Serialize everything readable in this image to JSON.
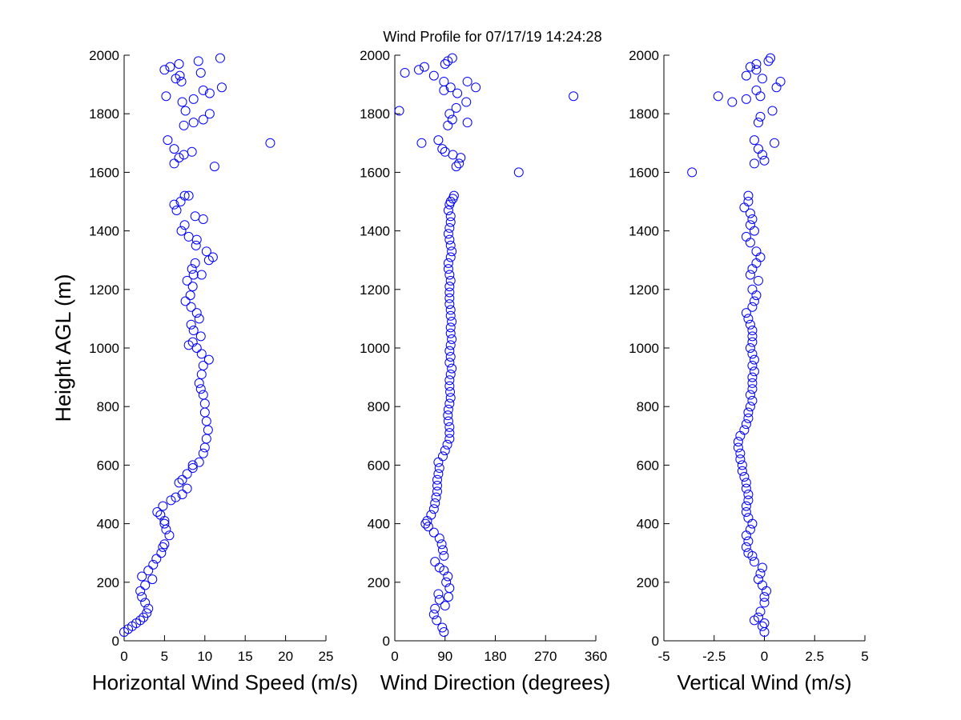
{
  "title": "Wind Profile for  07/17/19 14:24:28",
  "ylabel": "Height AGL (m)",
  "colors": {
    "marker": "#0000ff",
    "axis": "#000000",
    "background": "#ffffff"
  },
  "chart_data": [
    {
      "type": "scatter",
      "xlabel": "Horizontal Wind Speed (m/s)",
      "ylabel": "Height AGL (m)",
      "xlim": [
        0,
        25
      ],
      "ylim": [
        0,
        2000
      ],
      "xticks": [
        "0",
        "5",
        "10",
        "15",
        "20",
        "25"
      ],
      "yticks": [
        "0",
        "200",
        "400",
        "600",
        "800",
        "1000",
        "1200",
        "1400",
        "1600",
        "1800",
        "2000"
      ],
      "grid": false,
      "points": [
        [
          0.0,
          30
        ],
        [
          0.5,
          40
        ],
        [
          1.0,
          50
        ],
        [
          1.5,
          60
        ],
        [
          2.0,
          70
        ],
        [
          2.4,
          80
        ],
        [
          2.8,
          95
        ],
        [
          3.0,
          110
        ],
        [
          2.6,
          130
        ],
        [
          2.2,
          150
        ],
        [
          2.0,
          170
        ],
        [
          2.6,
          190
        ],
        [
          2.2,
          220
        ],
        [
          3.5,
          210
        ],
        [
          3.0,
          240
        ],
        [
          3.6,
          260
        ],
        [
          4.0,
          280
        ],
        [
          4.6,
          300
        ],
        [
          4.8,
          320
        ],
        [
          5.0,
          330
        ],
        [
          5.6,
          360
        ],
        [
          5.2,
          380
        ],
        [
          5.0,
          400
        ],
        [
          5.0,
          410
        ],
        [
          4.5,
          430
        ],
        [
          4.1,
          440
        ],
        [
          4.8,
          460
        ],
        [
          5.8,
          480
        ],
        [
          6.4,
          490
        ],
        [
          7.2,
          500
        ],
        [
          7.8,
          520
        ],
        [
          6.8,
          540
        ],
        [
          7.2,
          550
        ],
        [
          7.8,
          570
        ],
        [
          8.5,
          590
        ],
        [
          8.5,
          600
        ],
        [
          9.3,
          610
        ],
        [
          9.8,
          640
        ],
        [
          10.0,
          660
        ],
        [
          10.2,
          690
        ],
        [
          10.4,
          720
        ],
        [
          10.2,
          750
        ],
        [
          10.0,
          780
        ],
        [
          10.0,
          810
        ],
        [
          9.8,
          840
        ],
        [
          9.5,
          860
        ],
        [
          9.3,
          880
        ],
        [
          9.6,
          910
        ],
        [
          9.8,
          940
        ],
        [
          10.5,
          960
        ],
        [
          9.6,
          980
        ],
        [
          9.0,
          1000
        ],
        [
          8.0,
          1010
        ],
        [
          8.5,
          1020
        ],
        [
          9.5,
          1040
        ],
        [
          8.6,
          1060
        ],
        [
          8.3,
          1080
        ],
        [
          9.3,
          1100
        ],
        [
          9.0,
          1120
        ],
        [
          8.3,
          1140
        ],
        [
          7.6,
          1160
        ],
        [
          8.2,
          1180
        ],
        [
          8.5,
          1210
        ],
        [
          7.8,
          1230
        ],
        [
          8.6,
          1250
        ],
        [
          9.6,
          1250
        ],
        [
          8.4,
          1270
        ],
        [
          8.8,
          1290
        ],
        [
          10.5,
          1300
        ],
        [
          11.0,
          1310
        ],
        [
          10.2,
          1330
        ],
        [
          8.9,
          1350
        ],
        [
          9.0,
          1370
        ],
        [
          8.0,
          1380
        ],
        [
          7.1,
          1400
        ],
        [
          7.5,
          1420
        ],
        [
          9.8,
          1440
        ],
        [
          8.8,
          1450
        ],
        [
          6.5,
          1470
        ],
        [
          6.2,
          1490
        ],
        [
          7.0,
          1500
        ],
        [
          7.5,
          1520
        ],
        [
          8.0,
          1520
        ],
        [
          6.2,
          1630
        ],
        [
          6.8,
          1650
        ],
        [
          7.4,
          1660
        ],
        [
          8.4,
          1670
        ],
        [
          6.2,
          1680
        ],
        [
          5.4,
          1710
        ],
        [
          11.2,
          1620
        ],
        [
          18.1,
          1700
        ],
        [
          7.4,
          1760
        ],
        [
          8.6,
          1770
        ],
        [
          9.8,
          1780
        ],
        [
          10.6,
          1800
        ],
        [
          7.6,
          1810
        ],
        [
          7.2,
          1840
        ],
        [
          8.6,
          1850
        ],
        [
          5.2,
          1860
        ],
        [
          10.6,
          1870
        ],
        [
          9.8,
          1880
        ],
        [
          12.1,
          1890
        ],
        [
          6.4,
          1920
        ],
        [
          7.1,
          1910
        ],
        [
          6.9,
          1930
        ],
        [
          9.5,
          1940
        ],
        [
          5.0,
          1950
        ],
        [
          5.7,
          1960
        ],
        [
          6.8,
          1970
        ],
        [
          9.2,
          1980
        ],
        [
          11.9,
          1990
        ]
      ]
    },
    {
      "type": "scatter",
      "xlabel": "Wind Direction (degrees)",
      "ylabel": "",
      "xlim": [
        0,
        360
      ],
      "ylim": [
        0,
        2000
      ],
      "xticks": [
        "0",
        "90",
        "180",
        "270",
        "360"
      ],
      "yticks": [
        "0",
        "200",
        "400",
        "600",
        "800",
        "1000",
        "1200",
        "1400",
        "1600",
        "1800",
        "2000"
      ],
      "grid": false,
      "points": [
        [
          88,
          30
        ],
        [
          85,
          45
        ],
        [
          75,
          70
        ],
        [
          70,
          90
        ],
        [
          72,
          110
        ],
        [
          90,
          120
        ],
        [
          80,
          140
        ],
        [
          78,
          160
        ],
        [
          96,
          150
        ],
        [
          98,
          180
        ],
        [
          92,
          200
        ],
        [
          95,
          220
        ],
        [
          88,
          240
        ],
        [
          80,
          250
        ],
        [
          72,
          270
        ],
        [
          88,
          290
        ],
        [
          86,
          310
        ],
        [
          84,
          330
        ],
        [
          80,
          350
        ],
        [
          70,
          370
        ],
        [
          60,
          390
        ],
        [
          55,
          400
        ],
        [
          58,
          410
        ],
        [
          65,
          430
        ],
        [
          70,
          450
        ],
        [
          72,
          470
        ],
        [
          74,
          490
        ],
        [
          76,
          510
        ],
        [
          76,
          530
        ],
        [
          76,
          550
        ],
        [
          78,
          570
        ],
        [
          80,
          590
        ],
        [
          78,
          610
        ],
        [
          86,
          630
        ],
        [
          90,
          650
        ],
        [
          94,
          670
        ],
        [
          98,
          690
        ],
        [
          98,
          710
        ],
        [
          98,
          730
        ],
        [
          96,
          750
        ],
        [
          95,
          770
        ],
        [
          96,
          790
        ],
        [
          98,
          810
        ],
        [
          100,
          830
        ],
        [
          99,
          850
        ],
        [
          98,
          870
        ],
        [
          98,
          890
        ],
        [
          100,
          910
        ],
        [
          102,
          930
        ],
        [
          98,
          950
        ],
        [
          100,
          970
        ],
        [
          98,
          990
        ],
        [
          100,
          1010
        ],
        [
          102,
          1030
        ],
        [
          100,
          1050
        ],
        [
          100,
          1070
        ],
        [
          102,
          1090
        ],
        [
          100,
          1110
        ],
        [
          100,
          1130
        ],
        [
          98,
          1150
        ],
        [
          98,
          1170
        ],
        [
          98,
          1190
        ],
        [
          98,
          1210
        ],
        [
          100,
          1230
        ],
        [
          98,
          1250
        ],
        [
          96,
          1270
        ],
        [
          96,
          1290
        ],
        [
          100,
          1310
        ],
        [
          102,
          1330
        ],
        [
          100,
          1350
        ],
        [
          98,
          1370
        ],
        [
          96,
          1390
        ],
        [
          98,
          1410
        ],
        [
          100,
          1430
        ],
        [
          100,
          1450
        ],
        [
          96,
          1470
        ],
        [
          98,
          1490
        ],
        [
          100,
          1500
        ],
        [
          104,
          1510
        ],
        [
          106,
          1520
        ],
        [
          110,
          1620
        ],
        [
          115,
          1630
        ],
        [
          118,
          1650
        ],
        [
          104,
          1660
        ],
        [
          90,
          1670
        ],
        [
          85,
          1680
        ],
        [
          78,
          1710
        ],
        [
          48,
          1700
        ],
        [
          222,
          1600
        ],
        [
          95,
          1760
        ],
        [
          103,
          1780
        ],
        [
          98,
          1800
        ],
        [
          110,
          1820
        ],
        [
          8,
          1810
        ],
        [
          320,
          1860
        ],
        [
          112,
          1870
        ],
        [
          88,
          1880
        ],
        [
          128,
          1840
        ],
        [
          130,
          1770
        ],
        [
          145,
          1890
        ],
        [
          100,
          1890
        ],
        [
          88,
          1910
        ],
        [
          130,
          1910
        ],
        [
          70,
          1930
        ],
        [
          18,
          1940
        ],
        [
          43,
          1950
        ],
        [
          53,
          1960
        ],
        [
          90,
          1970
        ],
        [
          95,
          1980
        ],
        [
          103,
          1990
        ]
      ]
    },
    {
      "type": "scatter",
      "xlabel": "Vertical Wind (m/s)",
      "ylabel": "",
      "xlim": [
        -5,
        5
      ],
      "ylim": [
        0,
        2000
      ],
      "xticks": [
        "-5",
        "-2.5",
        "0",
        "2.5",
        "5"
      ],
      "yticks": [
        "0",
        "200",
        "400",
        "600",
        "800",
        "1000",
        "1200",
        "1400",
        "1600",
        "1800",
        "2000"
      ],
      "grid": false,
      "points": [
        [
          0.0,
          30
        ],
        [
          -0.1,
          50
        ],
        [
          0.0,
          60
        ],
        [
          -0.3,
          80
        ],
        [
          -0.5,
          70
        ],
        [
          -0.2,
          100
        ],
        [
          0.0,
          130
        ],
        [
          0.0,
          150
        ],
        [
          0.1,
          170
        ],
        [
          -0.1,
          190
        ],
        [
          -0.3,
          210
        ],
        [
          -0.2,
          230
        ],
        [
          -0.1,
          250
        ],
        [
          -0.5,
          270
        ],
        [
          -0.6,
          290
        ],
        [
          -0.8,
          300
        ],
        [
          -0.9,
          320
        ],
        [
          -0.8,
          340
        ],
        [
          -0.9,
          360
        ],
        [
          -0.7,
          380
        ],
        [
          -0.6,
          400
        ],
        [
          -0.8,
          420
        ],
        [
          -0.9,
          440
        ],
        [
          -0.9,
          460
        ],
        [
          -0.8,
          480
        ],
        [
          -0.8,
          500
        ],
        [
          -0.9,
          520
        ],
        [
          -0.9,
          540
        ],
        [
          -1.0,
          560
        ],
        [
          -1.1,
          580
        ],
        [
          -1.1,
          600
        ],
        [
          -1.2,
          620
        ],
        [
          -1.2,
          640
        ],
        [
          -1.3,
          660
        ],
        [
          -1.3,
          680
        ],
        [
          -1.2,
          700
        ],
        [
          -1.0,
          720
        ],
        [
          -0.9,
          740
        ],
        [
          -0.8,
          760
        ],
        [
          -0.8,
          780
        ],
        [
          -0.7,
          800
        ],
        [
          -0.6,
          820
        ],
        [
          -0.7,
          840
        ],
        [
          -0.6,
          860
        ],
        [
          -0.6,
          880
        ],
        [
          -0.6,
          900
        ],
        [
          -0.5,
          920
        ],
        [
          -0.6,
          940
        ],
        [
          -0.5,
          960
        ],
        [
          -0.6,
          980
        ],
        [
          -0.7,
          1000
        ],
        [
          -0.6,
          1020
        ],
        [
          -0.6,
          1040
        ],
        [
          -0.6,
          1060
        ],
        [
          -0.7,
          1080
        ],
        [
          -0.8,
          1100
        ],
        [
          -0.9,
          1120
        ],
        [
          -0.6,
          1140
        ],
        [
          -0.5,
          1160
        ],
        [
          -0.4,
          1180
        ],
        [
          -0.6,
          1200
        ],
        [
          -0.3,
          1230
        ],
        [
          -0.7,
          1250
        ],
        [
          -0.6,
          1270
        ],
        [
          -0.4,
          1290
        ],
        [
          -0.2,
          1310
        ],
        [
          -0.4,
          1330
        ],
        [
          -0.7,
          1360
        ],
        [
          -0.9,
          1380
        ],
        [
          -0.5,
          1400
        ],
        [
          -0.7,
          1420
        ],
        [
          -0.6,
          1440
        ],
        [
          -0.7,
          1460
        ],
        [
          -1.0,
          1480
        ],
        [
          -0.8,
          1500
        ],
        [
          -0.8,
          1520
        ],
        [
          -3.6,
          1600
        ],
        [
          -0.5,
          1630
        ],
        [
          0.0,
          1640
        ],
        [
          -0.1,
          1660
        ],
        [
          -0.3,
          1680
        ],
        [
          0.5,
          1700
        ],
        [
          -0.5,
          1710
        ],
        [
          -1.6,
          1840
        ],
        [
          -2.3,
          1860
        ],
        [
          -0.9,
          1850
        ],
        [
          -0.3,
          1770
        ],
        [
          -0.2,
          1790
        ],
        [
          0.4,
          1810
        ],
        [
          -0.2,
          1860
        ],
        [
          -0.4,
          1880
        ],
        [
          0.6,
          1890
        ],
        [
          0.8,
          1910
        ],
        [
          -0.1,
          1920
        ],
        [
          -0.9,
          1930
        ],
        [
          -0.4,
          1950
        ],
        [
          -0.7,
          1960
        ],
        [
          -0.4,
          1970
        ],
        [
          0.2,
          1980
        ],
        [
          0.3,
          1990
        ]
      ]
    }
  ]
}
